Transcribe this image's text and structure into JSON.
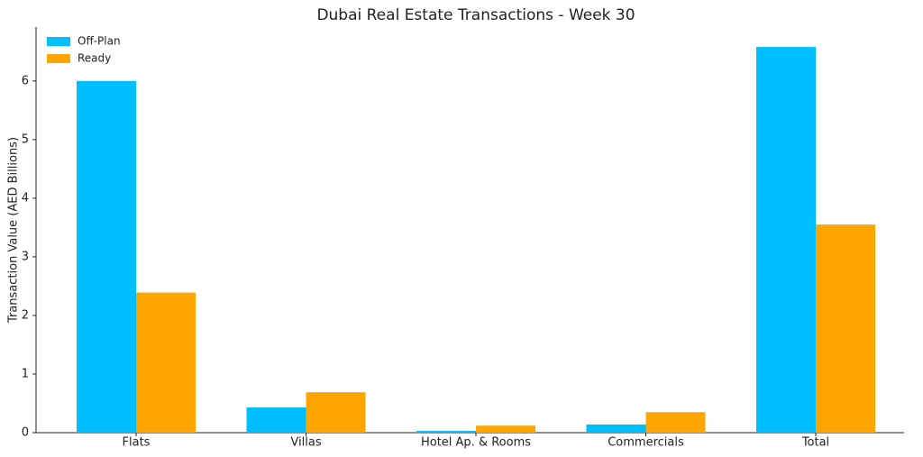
{
  "chart_data": {
    "type": "bar",
    "title": "Dubai Real Estate Transactions - Week 30",
    "y_label": "Transaction Value (AED Billions)",
    "categories": [
      "Flats",
      "Villas",
      "Hotel Ap. & Rooms",
      "Commercials",
      "Total"
    ],
    "series": [
      {
        "name": "Off-Plan",
        "color": "#00bfff",
        "values": [
          6.0,
          0.43,
          0.03,
          0.14,
          6.58
        ]
      },
      {
        "name": "Ready",
        "color": "#ffa500",
        "values": [
          2.39,
          0.69,
          0.12,
          0.35,
          3.55
        ]
      }
    ],
    "ylim": [
      0,
      6.92
    ],
    "yticks": [
      0,
      1,
      2,
      3,
      4,
      5,
      6
    ],
    "legend": "upper-left"
  }
}
